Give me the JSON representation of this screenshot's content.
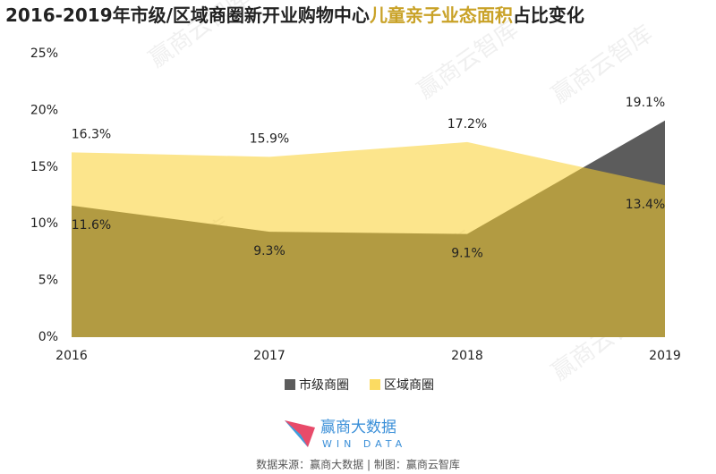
{
  "chart_data": {
    "type": "area",
    "title_parts": [
      "2016-2019年市级/区域商圈新开业购物中心",
      "儿童亲子业态面积",
      "占比变化"
    ],
    "categories": [
      "2016",
      "2017",
      "2018",
      "2019"
    ],
    "series": [
      {
        "name": "市级商圈",
        "color": "#5c5c5c",
        "values": [
          11.6,
          9.3,
          9.1,
          19.1
        ],
        "value_labels": [
          "11.6%",
          "9.3%",
          "9.1%",
          "19.1%"
        ]
      },
      {
        "name": "区域商圈",
        "color": "#f9cf2d",
        "values": [
          16.3,
          15.9,
          17.2,
          13.4
        ],
        "value_labels": [
          "16.3%",
          "15.9%",
          "17.2%",
          "13.4%"
        ]
      }
    ],
    "ylim": [
      0,
      25
    ],
    "yticks": [
      {
        "value": 0,
        "label": "0%"
      },
      {
        "value": 5,
        "label": "5%"
      },
      {
        "value": 10,
        "label": "10%"
      },
      {
        "value": 15,
        "label": "15%"
      },
      {
        "value": 20,
        "label": "20%"
      },
      {
        "value": 25,
        "label": "25%"
      }
    ],
    "grid": false,
    "watermark": "赢商云智库",
    "logo": {
      "name": "赢商大数据",
      "subtitle": "WIN DATA"
    },
    "source": "数据来源：赢商大数据 | 制图：赢商云智库"
  }
}
